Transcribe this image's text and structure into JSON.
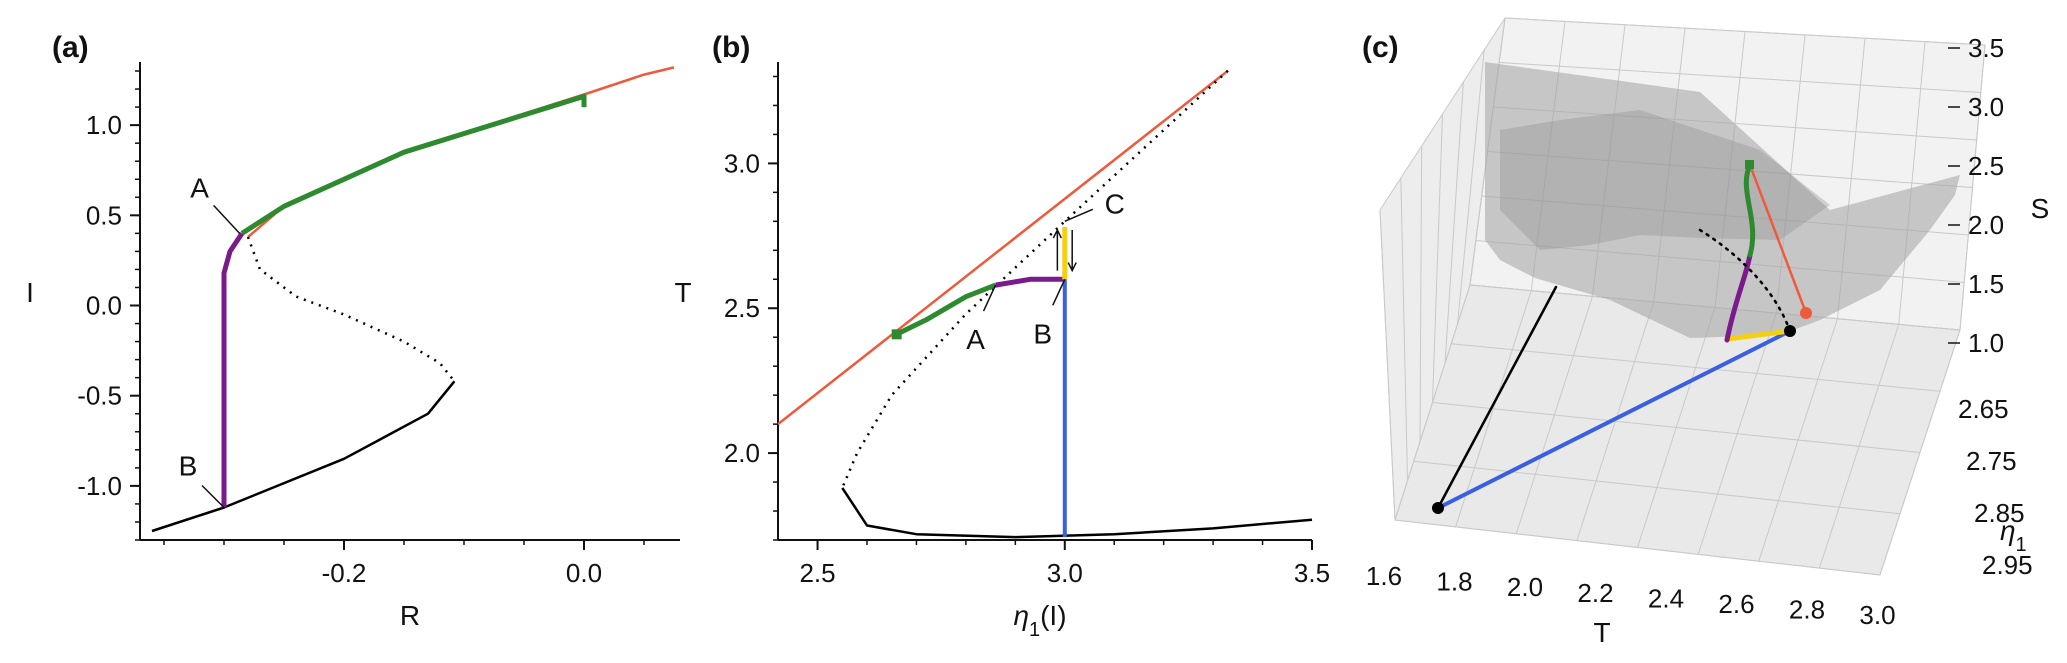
{
  "colors": {
    "stable_red": "#f05a3c",
    "green": "#2e8a2e",
    "purple": "#7a1a8c",
    "blue": "#3a5fe0",
    "yellow": "#f5cf12",
    "black": "#000000",
    "surface": "#bdbdbd"
  },
  "chart_data": [
    {
      "panel": "(a)",
      "type": "line",
      "xlabel": "R",
      "ylabel": "I",
      "xlim": [
        -0.37,
        0.08
      ],
      "ylim": [
        -1.3,
        1.35
      ],
      "xticks": [
        "-0.2",
        "0.0"
      ],
      "yticks": [
        "-1.0",
        "-0.5",
        "0.0",
        "0.5",
        "1.0"
      ],
      "series": [
        {
          "style": "red solid",
          "points": [
            [
              -0.28,
              0.38
            ],
            [
              -0.25,
              0.55
            ],
            [
              -0.15,
              0.85
            ],
            [
              0,
              1.17
            ],
            [
              0.05,
              1.28
            ],
            [
              0.075,
              1.32
            ]
          ]
        },
        {
          "style": "black dotted",
          "points": [
            [
              -0.28,
              0.38
            ],
            [
              -0.27,
              0.2
            ],
            [
              -0.24,
              0.05
            ],
            [
              -0.2,
              -0.05
            ],
            [
              -0.15,
              -0.2
            ],
            [
              -0.12,
              -0.32
            ],
            [
              -0.108,
              -0.42
            ]
          ]
        },
        {
          "style": "black solid",
          "points": [
            [
              -0.108,
              -0.42
            ],
            [
              -0.13,
              -0.6
            ],
            [
              -0.2,
              -0.85
            ],
            [
              -0.3,
              -1.12
            ],
            [
              -0.36,
              -1.25
            ]
          ]
        },
        {
          "style": "purple solid",
          "points": [
            [
              -0.3,
              -1.12
            ],
            [
              -0.3,
              0.18
            ],
            [
              -0.295,
              0.3
            ],
            [
              -0.285,
              0.4
            ]
          ]
        },
        {
          "style": "green solid",
          "points": [
            [
              -0.285,
              0.4
            ],
            [
              -0.25,
              0.55
            ],
            [
              -0.15,
              0.85
            ],
            [
              0,
              1.16
            ],
            [
              0,
              1.1
            ]
          ]
        }
      ],
      "annotations": [
        {
          "text": "A",
          "at": [
            -0.287,
            0.4
          ]
        },
        {
          "text": "B",
          "at": [
            -0.3,
            -1.12
          ]
        }
      ]
    },
    {
      "panel": "(b)",
      "type": "line",
      "xlabel": "η1(I)",
      "ylabel": "T",
      "xlim": [
        2.42,
        3.5
      ],
      "ylim": [
        1.7,
        3.35
      ],
      "xticks": [
        "2.5",
        "3.0",
        "3.5"
      ],
      "yticks": [
        "2.0",
        "2.5",
        "3.0"
      ],
      "series": [
        {
          "style": "red solid",
          "points": [
            [
              2.42,
              2.1
            ],
            [
              3.33,
              3.32
            ]
          ]
        },
        {
          "style": "black dotted",
          "points": [
            [
              3.33,
              3.32
            ],
            [
              3.0,
              2.8
            ],
            [
              2.8,
              2.48
            ],
            [
              2.65,
              2.2
            ],
            [
              2.58,
              2.0
            ],
            [
              2.55,
              1.88
            ]
          ]
        },
        {
          "style": "black solid",
          "points": [
            [
              2.55,
              1.88
            ],
            [
              2.6,
              1.75
            ],
            [
              2.7,
              1.72
            ],
            [
              2.9,
              1.71
            ],
            [
              3.1,
              1.72
            ],
            [
              3.3,
              1.74
            ],
            [
              3.5,
              1.77
            ]
          ]
        },
        {
          "style": "green solid",
          "points": [
            [
              2.66,
              2.41
            ],
            [
              2.72,
              2.46
            ],
            [
              2.8,
              2.54
            ],
            [
              2.86,
              2.58
            ]
          ]
        },
        {
          "style": "purple solid",
          "points": [
            [
              2.86,
              2.58
            ],
            [
              2.93,
              2.6
            ],
            [
              3.0,
              2.6
            ]
          ]
        },
        {
          "style": "blue solid",
          "points": [
            [
              3.0,
              1.71
            ],
            [
              3.0,
              2.78
            ]
          ]
        },
        {
          "style": "yellow solid",
          "points": [
            [
              3.0,
              2.6
            ],
            [
              3.0,
              2.78
            ]
          ]
        }
      ],
      "annotations": [
        {
          "text": "A",
          "at": [
            2.86,
            2.58
          ]
        },
        {
          "text": "B",
          "at": [
            3.0,
            2.6
          ]
        },
        {
          "text": "C",
          "at": [
            3.0,
            2.8
          ]
        }
      ]
    },
    {
      "panel": "(c)",
      "type": "line",
      "projection": "3d",
      "xlabel": "T",
      "ylabel": "η1",
      "zlabel": "S",
      "xticks": [
        "1.6",
        "1.8",
        "2.0",
        "2.2",
        "2.4",
        "2.6",
        "2.8",
        "3.0"
      ],
      "yticks": [
        "2.65",
        "2.75",
        "2.85",
        "2.95"
      ],
      "zticks": [
        "1.0",
        "1.5",
        "2.0",
        "2.5",
        "3.0",
        "3.5"
      ],
      "series": [
        {
          "style": "black solid"
        },
        {
          "style": "blue solid"
        },
        {
          "style": "yellow solid"
        },
        {
          "style": "purple solid"
        },
        {
          "style": "green solid"
        },
        {
          "style": "red solid"
        },
        {
          "style": "black dotted"
        }
      ]
    }
  ],
  "panels": {
    "a": {
      "label": "(a)",
      "xlabel": "R",
      "ylabel": "I",
      "A": "A",
      "B": "B"
    },
    "b": {
      "label": "(b)",
      "xlabel_main": "η",
      "xlabel_sub": "1",
      "xlabel_tail": "(I)",
      "ylabel": "T",
      "A": "A",
      "B": "B",
      "C": "C"
    },
    "c": {
      "label": "(c)",
      "xlabel": "T",
      "ylabel_main": "η",
      "ylabel_sub": "1",
      "zlabel": "S"
    }
  }
}
